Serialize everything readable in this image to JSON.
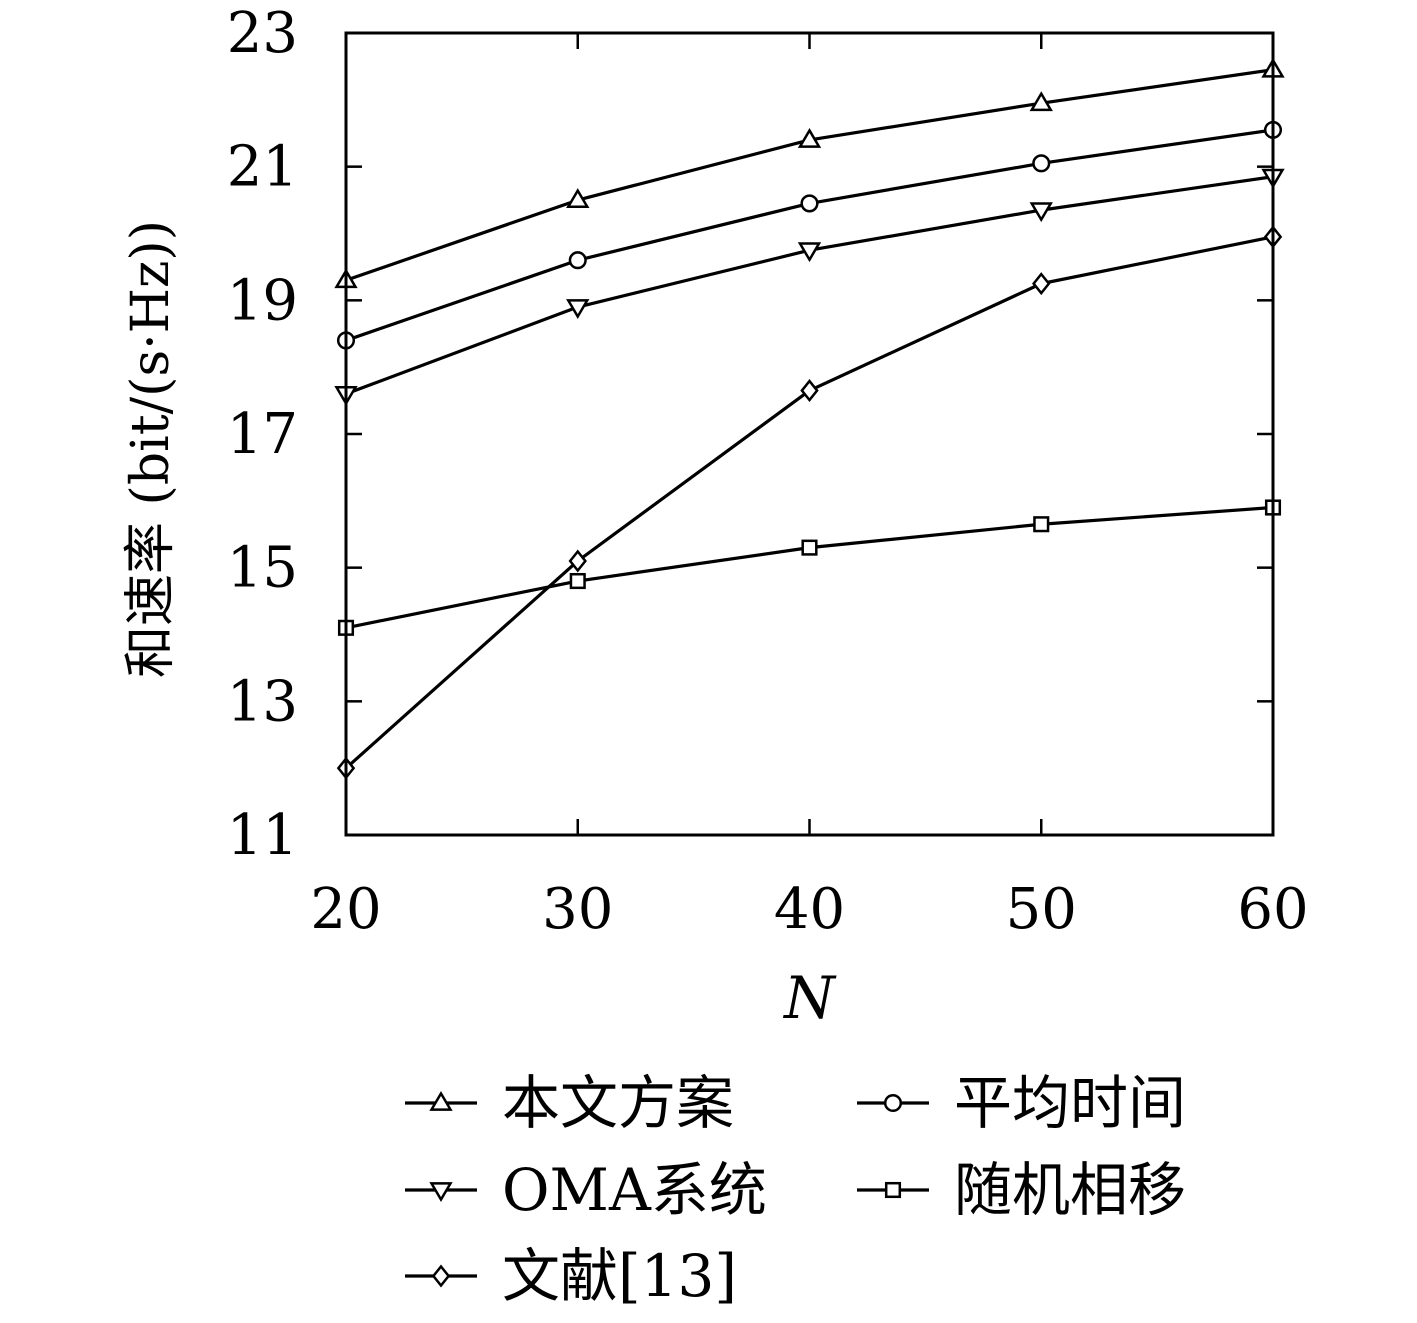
{
  "chart_data": {
    "type": "line",
    "xlabel": "N",
    "ylabel": "和速率 (bit/(s·Hz))",
    "x": [
      20,
      30,
      40,
      50,
      60
    ],
    "xlim": [
      20,
      60
    ],
    "ylim": [
      11,
      23
    ],
    "xticks": [
      "20",
      "30",
      "40",
      "50",
      "60"
    ],
    "yticks": [
      "11",
      "13",
      "15",
      "17",
      "19",
      "21",
      "23"
    ],
    "grid": false,
    "legend_position": "bottom",
    "series": [
      {
        "name": "本文方案",
        "marker": "triangle-up",
        "values": [
          19.3,
          20.5,
          21.4,
          21.95,
          22.45
        ]
      },
      {
        "name": "平均时间",
        "marker": "circle",
        "values": [
          18.4,
          19.6,
          20.45,
          21.05,
          21.55
        ]
      },
      {
        "name": "OMA系统",
        "marker": "triangle-down",
        "values": [
          17.6,
          18.9,
          19.75,
          20.35,
          20.85
        ]
      },
      {
        "name": "随机相移",
        "marker": "square",
        "values": [
          14.1,
          14.8,
          15.3,
          15.65,
          15.9
        ]
      },
      {
        "name": "文献[13]",
        "marker": "diamond",
        "values": [
          12.0,
          15.1,
          17.65,
          19.25,
          19.95
        ]
      }
    ]
  }
}
